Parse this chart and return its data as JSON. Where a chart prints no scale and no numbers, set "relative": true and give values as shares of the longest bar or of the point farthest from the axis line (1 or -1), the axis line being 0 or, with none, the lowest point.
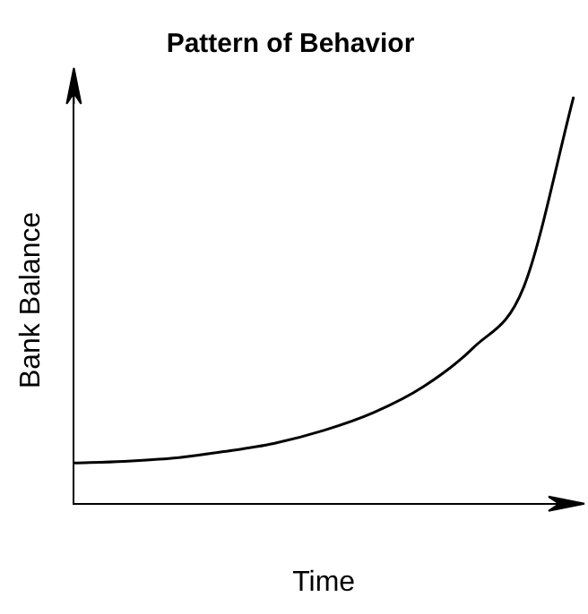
{
  "chart_data": {
    "type": "line",
    "title": "Pattern of Behavior",
    "xlabel": "Time",
    "ylabel": "Bank Balance",
    "relative": true,
    "marker": "none",
    "grid": false,
    "legend": false,
    "categories": [
      null,
      null,
      null,
      null,
      null,
      null,
      null,
      null,
      null,
      null,
      null
    ],
    "series": [
      {
        "color": "#000000",
        "values": [
          0.1,
          0.104,
          0.112,
          0.128,
          0.148,
          0.18,
          0.224,
          0.288,
          0.384,
          0.532,
          1.0
        ]
      }
    ]
  }
}
